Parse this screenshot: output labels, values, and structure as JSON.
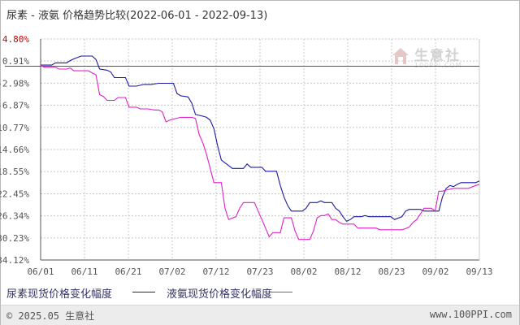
{
  "title": "尿素 - 液氨 价格趋势比较(2022-06-01 - 2022-09-13)",
  "footer": {
    "copyright": "© 2025.05 生意社",
    "site": "www.100PPI.com"
  },
  "watermark": {
    "name": "生意社",
    "site": "100PPI.COM"
  },
  "colors": {
    "series_1": "#1a1aa6",
    "series_2": "#e020c8",
    "grid": "#c8c8c8",
    "axis": "#555555",
    "zero_line": "#555555",
    "tick_text": "#555555",
    "top_tick_text": "#cc0000"
  },
  "chart_data": {
    "type": "line",
    "title": "尿素 - 液氨 价格趋势比较(2022-06-01 - 2022-09-13)",
    "xlabel": "",
    "ylabel": "",
    "x_ticks": [
      "06/01",
      "06/11",
      "06/21",
      "07/02",
      "07/12",
      "07/23",
      "08/02",
      "08/12",
      "08/23",
      "09/02",
      "09/13"
    ],
    "y_ticks": [
      "4.80%",
      "0.91%",
      "-2.98%",
      "-6.87%",
      "-10.77%",
      "-14.66%",
      "-18.55%",
      "-22.45%",
      "-26.34%",
      "-30.23%",
      "-34.12%"
    ],
    "y_tick_values": [
      4.8,
      0.91,
      -2.98,
      -6.87,
      -10.77,
      -14.66,
      -18.55,
      -22.45,
      -26.34,
      -30.23,
      -34.12
    ],
    "ylim": [
      -34.12,
      4.8
    ],
    "x_range_days": [
      0,
      104
    ],
    "grid": true,
    "legend_position": "bottom",
    "series": [
      {
        "name": "尿素现货价格变化幅度",
        "color": "#1a1aa6",
        "points": [
          [
            0,
            0.2
          ],
          [
            3,
            0.2
          ],
          [
            4,
            0.6
          ],
          [
            7,
            0.6
          ],
          [
            8,
            1.0
          ],
          [
            9,
            1.3
          ],
          [
            11,
            1.8
          ],
          [
            14,
            1.8
          ],
          [
            15,
            1.2
          ],
          [
            16,
            -0.5
          ],
          [
            18,
            -0.7
          ],
          [
            19,
            -1.0
          ],
          [
            20,
            -2.0
          ],
          [
            23,
            -2.0
          ],
          [
            24,
            -3.5
          ],
          [
            26,
            -3.5
          ],
          [
            28,
            -3.2
          ],
          [
            30,
            -3.2
          ],
          [
            32,
            -3.0
          ],
          [
            36,
            -3.0
          ],
          [
            37,
            -4.8
          ],
          [
            38,
            -5.2
          ],
          [
            40,
            -5.4
          ],
          [
            41,
            -6.5
          ],
          [
            42,
            -8.5
          ],
          [
            44,
            -8.8
          ],
          [
            45,
            -9.0
          ],
          [
            46,
            -9.5
          ],
          [
            47,
            -11.0
          ],
          [
            48,
            -14.0
          ],
          [
            49,
            -16.5
          ],
          [
            50,
            -17.0
          ],
          [
            51,
            -17.5
          ],
          [
            52,
            -18.0
          ],
          [
            55,
            -18.0
          ],
          [
            56,
            -17.2
          ],
          [
            57,
            -17.8
          ],
          [
            60,
            -17.8
          ],
          [
            61,
            -18.5
          ],
          [
            64,
            -18.5
          ],
          [
            65,
            -21.0
          ],
          [
            66,
            -23.0
          ],
          [
            67,
            -24.5
          ],
          [
            68,
            -25.5
          ],
          [
            71,
            -25.5
          ],
          [
            72,
            -25.0
          ],
          [
            73,
            -24.0
          ],
          [
            75,
            -24.0
          ],
          [
            76,
            -23.7
          ],
          [
            77,
            -24.0
          ],
          [
            79,
            -24.0
          ],
          [
            80,
            -25.0
          ],
          [
            81,
            -25.5
          ],
          [
            82,
            -26.5
          ],
          [
            83,
            -27.3
          ],
          [
            84,
            -27.0
          ],
          [
            85,
            -26.5
          ],
          [
            87,
            -26.5
          ],
          [
            88,
            -26.3
          ],
          [
            89,
            -26.5
          ],
          [
            95,
            -26.5
          ],
          [
            96,
            -27.0
          ],
          [
            98,
            -26.5
          ],
          [
            99,
            -25.5
          ],
          [
            100,
            -25.2
          ],
          [
            103,
            -25.2
          ],
          [
            104,
            -25.5
          ],
          [
            106,
            -25.5
          ],
          [
            108,
            -25.5
          ],
          [
            109,
            -23.0
          ],
          [
            110,
            -21.5
          ],
          [
            111,
            -21.0
          ],
          [
            112,
            -21.2
          ],
          [
            113,
            -20.8
          ],
          [
            114,
            -20.5
          ],
          [
            118,
            -20.5
          ],
          [
            119,
            -20.2
          ]
        ]
      },
      {
        "name": "液氨现货价格变化幅度",
        "color": "#e020c8",
        "points": [
          [
            0,
            0.2
          ],
          [
            1,
            -0.2
          ],
          [
            4,
            -0.2
          ],
          [
            5,
            -0.5
          ],
          [
            7,
            -0.5
          ],
          [
            8,
            -0.3
          ],
          [
            9,
            -0.8
          ],
          [
            13,
            -0.8
          ],
          [
            14,
            -1.2
          ],
          [
            15,
            -1.5
          ],
          [
            16,
            -5.0
          ],
          [
            17,
            -5.3
          ],
          [
            18,
            -6.0
          ],
          [
            20,
            -6.0
          ],
          [
            21,
            -5.5
          ],
          [
            23,
            -5.5
          ],
          [
            24,
            -7.2
          ],
          [
            26,
            -7.2
          ],
          [
            27,
            -7.5
          ],
          [
            28,
            -7.5
          ],
          [
            29,
            -7.5
          ],
          [
            31,
            -7.7
          ],
          [
            32,
            -7.7
          ],
          [
            33,
            -8.0
          ],
          [
            34,
            -9.8
          ],
          [
            35,
            -9.5
          ],
          [
            36,
            -9.3
          ],
          [
            38,
            -9.0
          ],
          [
            41,
            -9.0
          ],
          [
            42,
            -9.2
          ],
          [
            43,
            -12.0
          ],
          [
            44,
            -13.5
          ],
          [
            45,
            -15.5
          ],
          [
            46,
            -18.0
          ],
          [
            47,
            -20.5
          ],
          [
            49,
            -20.5
          ],
          [
            50,
            -25.0
          ],
          [
            51,
            -27.0
          ],
          [
            53,
            -26.5
          ],
          [
            54,
            -25.0
          ],
          [
            55,
            -24.0
          ],
          [
            58,
            -24.0
          ],
          [
            59,
            -25.5
          ],
          [
            60,
            -27.0
          ],
          [
            61,
            -28.5
          ],
          [
            62,
            -30.0
          ],
          [
            63,
            -29.3
          ],
          [
            65,
            -29.3
          ],
          [
            66,
            -26.7
          ],
          [
            68,
            -26.7
          ],
          [
            69,
            -29.0
          ],
          [
            70,
            -30.5
          ],
          [
            73,
            -30.5
          ],
          [
            74,
            -29.0
          ],
          [
            75,
            -26.7
          ],
          [
            76,
            -26.3
          ],
          [
            77,
            -26.3
          ],
          [
            78,
            -26.0
          ],
          [
            79,
            -27.0
          ],
          [
            80,
            -27.0
          ],
          [
            81,
            -27.5
          ],
          [
            82,
            -27.8
          ],
          [
            85,
            -27.8
          ],
          [
            86,
            -28.5
          ],
          [
            91,
            -28.5
          ],
          [
            92,
            -28.8
          ],
          [
            98,
            -28.8
          ],
          [
            99,
            -28.6
          ],
          [
            100,
            -28.3
          ],
          [
            101,
            -27.5
          ],
          [
            102,
            -27.0
          ],
          [
            103,
            -26.0
          ],
          [
            104,
            -25.0
          ],
          [
            105,
            -25.0
          ],
          [
            106,
            -25.0
          ],
          [
            107,
            -25.5
          ],
          [
            108,
            -22.0
          ],
          [
            109,
            -22.0
          ],
          [
            110,
            -21.8
          ],
          [
            112,
            -21.5
          ],
          [
            116,
            -21.5
          ],
          [
            118,
            -21.0
          ],
          [
            119,
            -20.8
          ]
        ]
      }
    ]
  }
}
